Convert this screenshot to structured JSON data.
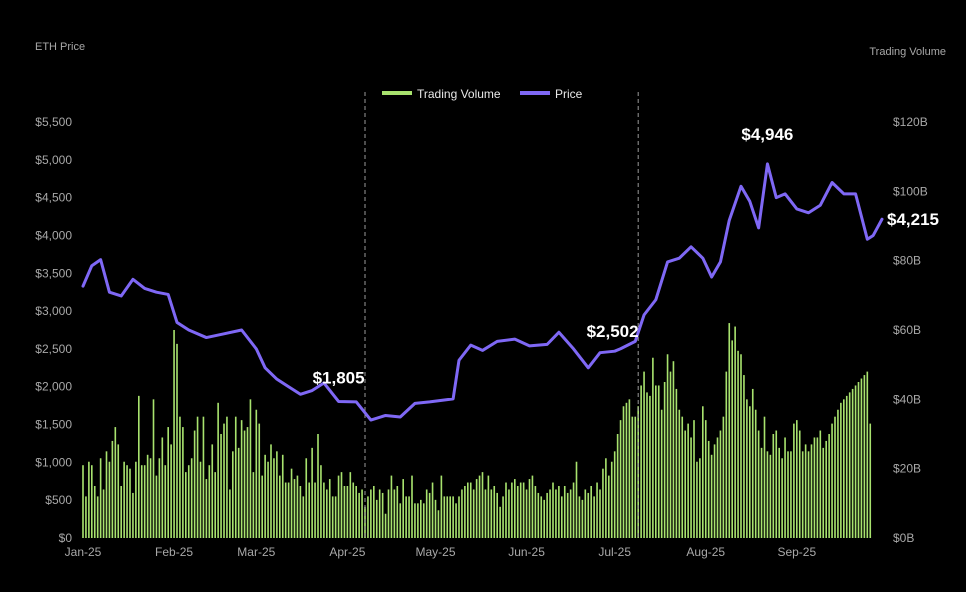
{
  "chart_data": {
    "type": "line",
    "title": "",
    "ylabel_left": "ETH Price",
    "ylabel_right": "Trading Volume",
    "ylim_left": [
      0,
      5500
    ],
    "ylim_right": [
      0,
      120
    ],
    "y_ticks_left": [
      "$0",
      "$500",
      "$1,000",
      "$1,500",
      "$2,000",
      "$2,500",
      "$3,000",
      "$3,500",
      "$4,000",
      "$4,500",
      "$5,000",
      "$5,500"
    ],
    "y_ticks_right": [
      "$0B",
      "$20B",
      "$40B",
      "$60B",
      "$80B",
      "$100B",
      "$120B"
    ],
    "x_ticks": [
      "Jan-25",
      "Feb-25",
      "Mar-25",
      "Apr-25",
      "May-25",
      "Jun-25",
      "Jul-25",
      "Aug-25",
      "Sep-25"
    ],
    "legend": {
      "placement": "top-center",
      "entries": [
        "Trading Volume",
        "Price"
      ]
    },
    "colors": {
      "price": "#7f68f5",
      "volume": "#a8e26e",
      "axis": "#a8a8a8",
      "background": "#000000"
    },
    "grid": false,
    "reference_lines": [
      "2025-04-07",
      "2025-07-09"
    ],
    "annotations": [
      {
        "text": "$1,805",
        "date": "2025-03-29",
        "value": 1805
      },
      {
        "text": "$2,502",
        "date": "2025-07-03",
        "value": 2502
      },
      {
        "text": "$4,946",
        "date": "2025-08-22",
        "value": 4946
      },
      {
        "text": "$4,215",
        "date": "2025-09-30",
        "value": 4215
      }
    ],
    "series": [
      {
        "name": "Price",
        "type": "line",
        "points": [
          [
            "2025-01-01",
            3330
          ],
          [
            "2025-01-04",
            3600
          ],
          [
            "2025-01-07",
            3680
          ],
          [
            "2025-01-10",
            3250
          ],
          [
            "2025-01-14",
            3200
          ],
          [
            "2025-01-18",
            3420
          ],
          [
            "2025-01-22",
            3300
          ],
          [
            "2025-01-26",
            3250
          ],
          [
            "2025-01-30",
            3220
          ],
          [
            "2025-02-02",
            2850
          ],
          [
            "2025-02-06",
            2750
          ],
          [
            "2025-02-12",
            2650
          ],
          [
            "2025-02-18",
            2700
          ],
          [
            "2025-02-24",
            2750
          ],
          [
            "2025-03-01",
            2500
          ],
          [
            "2025-03-04",
            2250
          ],
          [
            "2025-03-08",
            2100
          ],
          [
            "2025-03-12",
            2000
          ],
          [
            "2025-03-16",
            1900
          ],
          [
            "2025-03-20",
            1950
          ],
          [
            "2025-03-24",
            2050
          ],
          [
            "2025-03-29",
            1805
          ],
          [
            "2025-04-04",
            1800
          ],
          [
            "2025-04-09",
            1560
          ],
          [
            "2025-04-14",
            1620
          ],
          [
            "2025-04-19",
            1600
          ],
          [
            "2025-04-24",
            1780
          ],
          [
            "2025-04-29",
            1800
          ],
          [
            "2025-05-03",
            1820
          ],
          [
            "2025-05-07",
            1840
          ],
          [
            "2025-05-09",
            2350
          ],
          [
            "2025-05-13",
            2550
          ],
          [
            "2025-05-17",
            2480
          ],
          [
            "2025-05-22",
            2600
          ],
          [
            "2025-05-28",
            2630
          ],
          [
            "2025-06-02",
            2540
          ],
          [
            "2025-06-08",
            2560
          ],
          [
            "2025-06-12",
            2720
          ],
          [
            "2025-06-17",
            2500
          ],
          [
            "2025-06-22",
            2250
          ],
          [
            "2025-06-26",
            2450
          ],
          [
            "2025-07-01",
            2470
          ],
          [
            "2025-07-03",
            2502
          ],
          [
            "2025-07-08",
            2600
          ],
          [
            "2025-07-11",
            2950
          ],
          [
            "2025-07-15",
            3150
          ],
          [
            "2025-07-19",
            3650
          ],
          [
            "2025-07-23",
            3700
          ],
          [
            "2025-07-27",
            3850
          ],
          [
            "2025-07-31",
            3700
          ],
          [
            "2025-08-03",
            3450
          ],
          [
            "2025-08-06",
            3650
          ],
          [
            "2025-08-09",
            4200
          ],
          [
            "2025-08-13",
            4650
          ],
          [
            "2025-08-16",
            4450
          ],
          [
            "2025-08-19",
            4100
          ],
          [
            "2025-08-22",
            4946
          ],
          [
            "2025-08-25",
            4500
          ],
          [
            "2025-08-28",
            4550
          ],
          [
            "2025-09-01",
            4350
          ],
          [
            "2025-09-05",
            4300
          ],
          [
            "2025-09-09",
            4400
          ],
          [
            "2025-09-13",
            4700
          ],
          [
            "2025-09-17",
            4550
          ],
          [
            "2025-09-21",
            4550
          ],
          [
            "2025-09-23",
            4250
          ],
          [
            "2025-09-25",
            3950
          ],
          [
            "2025-09-27",
            4000
          ],
          [
            "2025-09-30",
            4215
          ]
        ]
      },
      {
        "name": "Trading Volume",
        "type": "bar",
        "unit": "B",
        "start_date": "2025-01-01",
        "interval_days": 1,
        "values": [
          21,
          12,
          22,
          21,
          15,
          12,
          23,
          14,
          25,
          22,
          28,
          32,
          27,
          15,
          22,
          21,
          20,
          13,
          22,
          41,
          21,
          21,
          24,
          23,
          40,
          18,
          23,
          29,
          21,
          32,
          27,
          60,
          56,
          35,
          32,
          19,
          21,
          23,
          31,
          35,
          22,
          35,
          17,
          21,
          27,
          19,
          39,
          30,
          33,
          35,
          14,
          25,
          35,
          26,
          34,
          31,
          32,
          40,
          19,
          37,
          33,
          18,
          24,
          22,
          27,
          23,
          25,
          18,
          24,
          16,
          16,
          20,
          17,
          18,
          15,
          12,
          23,
          16,
          26,
          16,
          30,
          21,
          16,
          14,
          17,
          12,
          12,
          18,
          19,
          15,
          15,
          19,
          16,
          15,
          13,
          14,
          9,
          12,
          14,
          15,
          11,
          14,
          13,
          7,
          14,
          18,
          14,
          15,
          10,
          17,
          12,
          12,
          18,
          10,
          10,
          11,
          10,
          14,
          13,
          16,
          11,
          8,
          18,
          12,
          12,
          12,
          12,
          10,
          12,
          14,
          15,
          16,
          16,
          14,
          17,
          18,
          19,
          14,
          18,
          14,
          15,
          13,
          9,
          12,
          16,
          14,
          16,
          17,
          15,
          16,
          16,
          14,
          17,
          18,
          15,
          13,
          12,
          11,
          13,
          14,
          16,
          14,
          15,
          12,
          15,
          13,
          14,
          16,
          22,
          12,
          11,
          14,
          13,
          15,
          12,
          16,
          14,
          20,
          23,
          18,
          22,
          25,
          30,
          34,
          38,
          39,
          40,
          35,
          35,
          38,
          44,
          48,
          42,
          41,
          52,
          44,
          44,
          37,
          45,
          53,
          48,
          51,
          43,
          37,
          35,
          31,
          33,
          29,
          34,
          22,
          23,
          38,
          34,
          28,
          24,
          27,
          29,
          31,
          35,
          48,
          62,
          57,
          61,
          54,
          53,
          47,
          40,
          38,
          43,
          37,
          31,
          26,
          35,
          25,
          24,
          30,
          31,
          26,
          23,
          29,
          25,
          25,
          33,
          34,
          31,
          25,
          27,
          25,
          27,
          29,
          29,
          31,
          26,
          28,
          30,
          33,
          35,
          37,
          39,
          40,
          41,
          42,
          43,
          44,
          45,
          46,
          47,
          48,
          33
        ]
      }
    ]
  }
}
